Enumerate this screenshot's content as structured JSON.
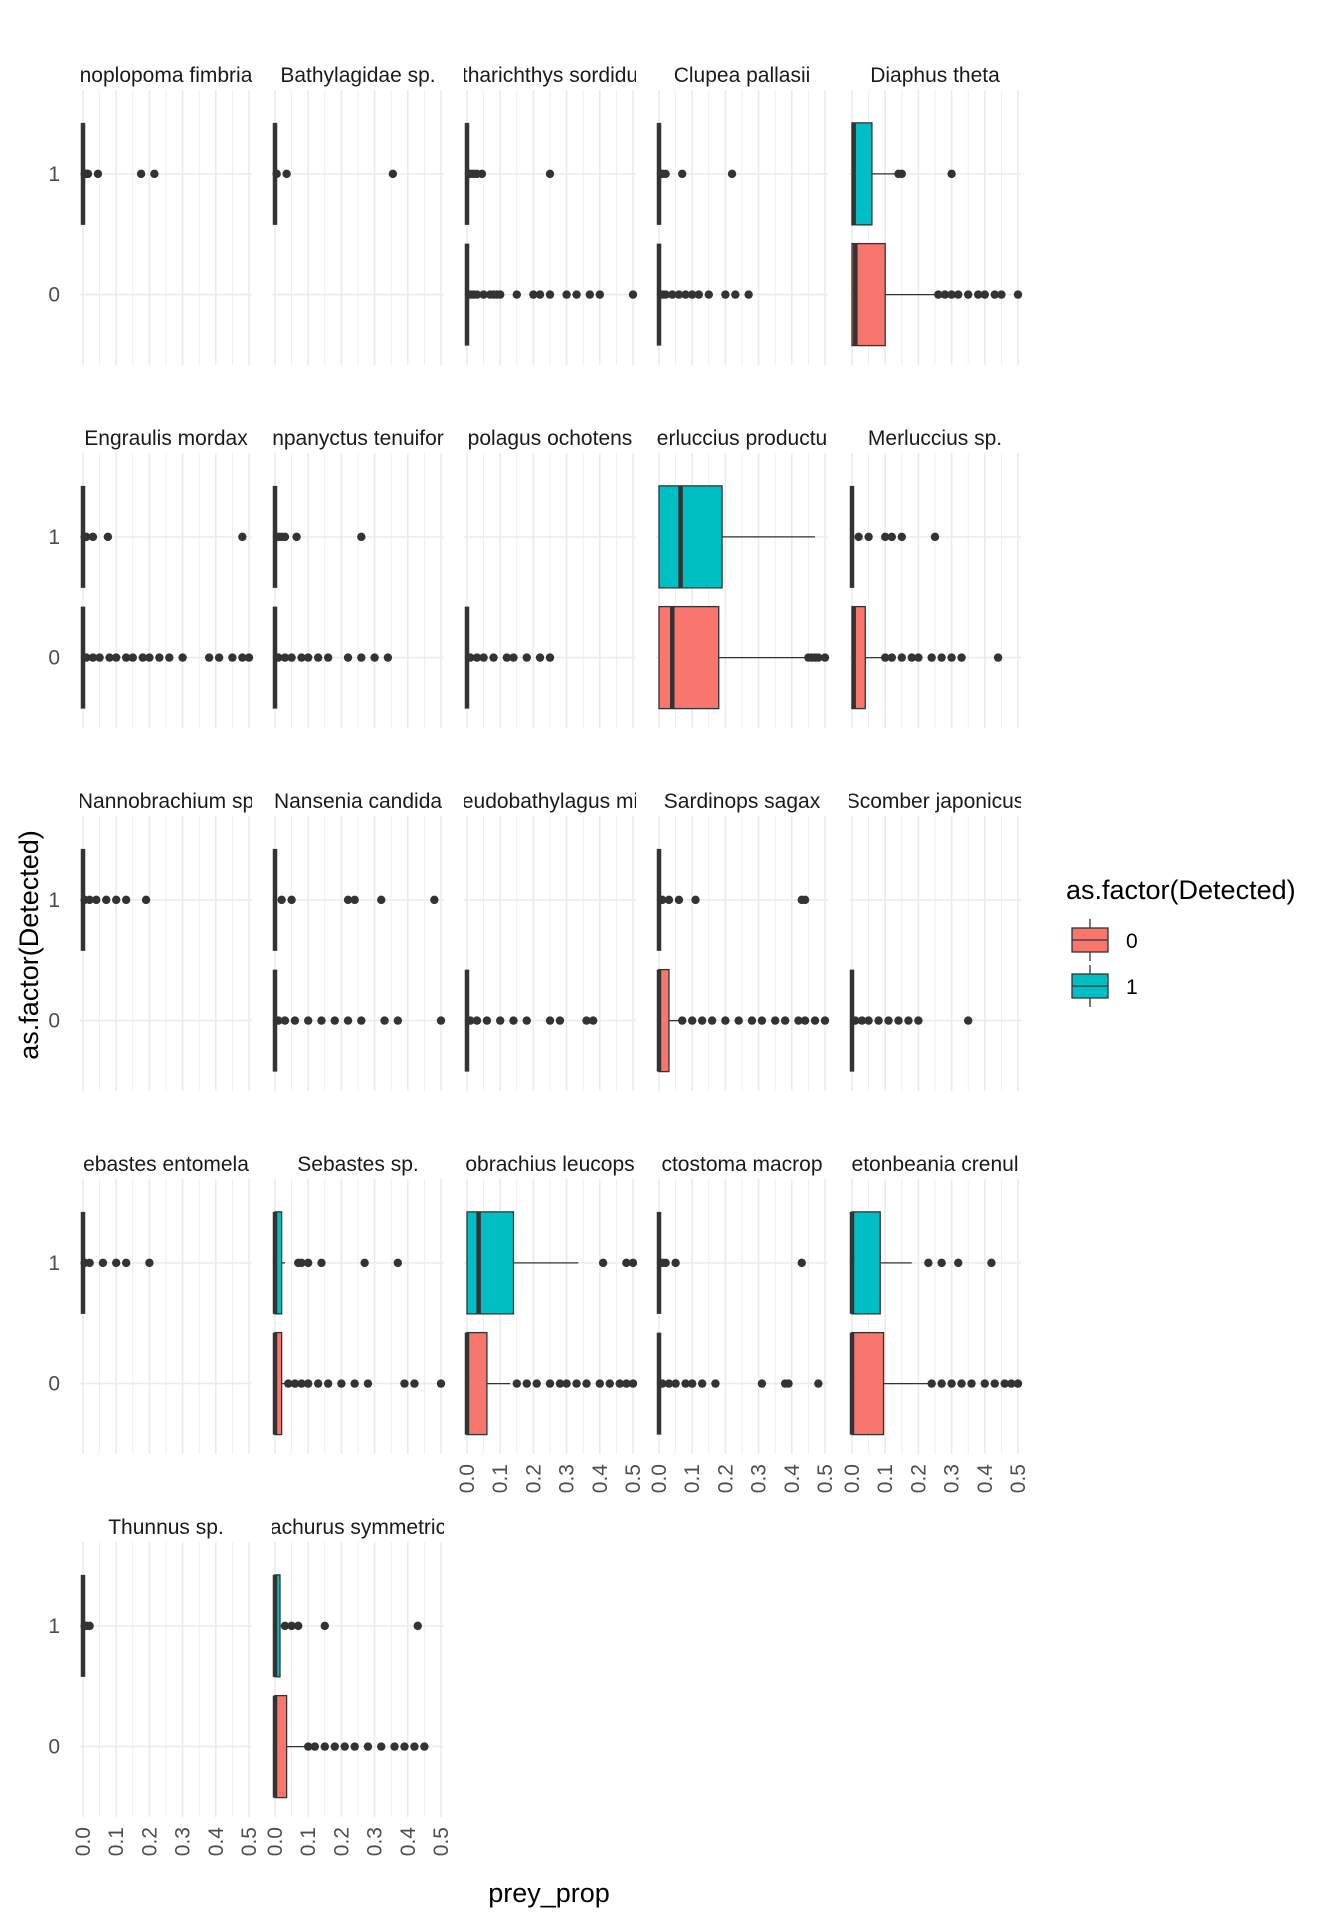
{
  "chart_data": {
    "type": "boxplot",
    "layout": "faceted horizontal boxplots, 5 columns",
    "x_label": "prey_prop",
    "y_label": "as.factor(Detected)",
    "x_range": [
      0.0,
      0.5
    ],
    "x_ticks": [
      "0.0",
      "0.1",
      "0.2",
      "0.3",
      "0.4",
      "0.5"
    ],
    "y_categories": [
      "1",
      "0"
    ],
    "legend": {
      "title": "as.factor(Detected)",
      "placement": "right",
      "items": [
        {
          "label": "0",
          "color": "#F8766D"
        },
        {
          "label": "1",
          "color": "#00BFC4"
        }
      ]
    },
    "colors": {
      "0": "#F8766D",
      "1": "#00BFC4",
      "grid": "#EBEBEB",
      "ink": "#333333"
    },
    "facets": [
      {
        "label": "Anoplopoma fimbria",
        "display_label": "noplopoma fimbria",
        "groups": {
          "1": {
            "stats": [
              0,
              0,
              0,
              0,
              0
            ],
            "outliers": [
              0.005,
              0.01,
              0.015,
              0.045,
              0.175,
              0.215
            ]
          }
        }
      },
      {
        "label": "Bathylagidae sp.",
        "display_label": "Bathylagidae sp.",
        "groups": {
          "1": {
            "stats": [
              0,
              0,
              0,
              0,
              0
            ],
            "outliers": [
              0.005,
              0.035,
              0.355
            ]
          }
        }
      },
      {
        "label": "Citharichthys sordidus",
        "display_label": "tharichthys sordidu",
        "groups": {
          "1": {
            "stats": [
              0,
              0,
              0,
              0,
              0
            ],
            "outliers": [
              0.01,
              0.02,
              0.03,
              0.045,
              0.25
            ]
          },
          "0": {
            "stats": [
              0,
              0,
              0,
              0,
              0
            ],
            "outliers": [
              0.01,
              0.02,
              0.03,
              0.05,
              0.07,
              0.08,
              0.09,
              0.1,
              0.15,
              0.2,
              0.22,
              0.25,
              0.3,
              0.33,
              0.37,
              0.4,
              0.5
            ]
          }
        }
      },
      {
        "label": "Clupea pallasii",
        "display_label": "Clupea pallasii",
        "groups": {
          "1": {
            "stats": [
              0,
              0,
              0,
              0,
              0
            ],
            "outliers": [
              0.01,
              0.02,
              0.07,
              0.22
            ]
          },
          "0": {
            "stats": [
              0,
              0,
              0,
              0,
              0
            ],
            "outliers": [
              0.01,
              0.02,
              0.04,
              0.06,
              0.08,
              0.1,
              0.12,
              0.15,
              0.2,
              0.23,
              0.27
            ]
          }
        }
      },
      {
        "label": "Diaphus theta",
        "display_label": "Diaphus theta",
        "groups": {
          "1": {
            "stats": [
              0,
              0,
              0.005,
              0.06,
              0.13
            ],
            "outliers": [
              0.14,
              0.15,
              0.3
            ]
          },
          "0": {
            "stats": [
              0,
              0,
              0.01,
              0.1,
              0.25
            ],
            "outliers": [
              0.26,
              0.28,
              0.3,
              0.32,
              0.35,
              0.38,
              0.4,
              0.43,
              0.45,
              0.5
            ]
          }
        }
      },
      {
        "label": "Engraulis mordax",
        "display_label": "Engraulis mordax",
        "groups": {
          "1": {
            "stats": [
              0,
              0,
              0,
              0,
              0
            ],
            "outliers": [
              0.005,
              0.01,
              0.03,
              0.075,
              0.48
            ]
          },
          "0": {
            "stats": [
              0,
              0,
              0,
              0,
              0
            ],
            "outliers": [
              0.01,
              0.03,
              0.05,
              0.08,
              0.1,
              0.13,
              0.15,
              0.18,
              0.2,
              0.23,
              0.26,
              0.3,
              0.38,
              0.41,
              0.45,
              0.48,
              0.5
            ]
          }
        }
      },
      {
        "label": "Lampanyctus tenuiformis",
        "display_label": "npanyctus tenuifor",
        "groups": {
          "1": {
            "stats": [
              0,
              0,
              0,
              0,
              0
            ],
            "outliers": [
              0.01,
              0.02,
              0.03,
              0.065,
              0.26
            ]
          },
          "0": {
            "stats": [
              0,
              0,
              0,
              0,
              0
            ],
            "outliers": [
              0.01,
              0.03,
              0.05,
              0.08,
              0.1,
              0.13,
              0.16,
              0.22,
              0.26,
              0.3,
              0.34
            ]
          }
        }
      },
      {
        "label": "Lipolagus ochotensis",
        "display_label": "polagus ochotens",
        "groups": {
          "0": {
            "stats": [
              0,
              0,
              0,
              0,
              0
            ],
            "outliers": [
              0.01,
              0.03,
              0.05,
              0.08,
              0.12,
              0.14,
              0.18,
              0.22,
              0.25
            ]
          }
        }
      },
      {
        "label": "Merluccius productus",
        "display_label": "erluccius productu",
        "groups": {
          "1": {
            "stats": [
              0,
              0,
              0.065,
              0.19,
              0.47
            ],
            "outliers": []
          },
          "0": {
            "stats": [
              0,
              0,
              0.04,
              0.18,
              0.44
            ],
            "outliers": [
              0.45,
              0.46,
              0.47,
              0.48,
              0.5
            ]
          }
        }
      },
      {
        "label": "Merluccius sp.",
        "display_label": "Merluccius sp.",
        "groups": {
          "1": {
            "stats": [
              0,
              0,
              0,
              0,
              0
            ],
            "outliers": [
              0.02,
              0.05,
              0.1,
              0.12,
              0.15,
              0.25
            ]
          },
          "0": {
            "stats": [
              0,
              0,
              0.005,
              0.04,
              0.09
            ],
            "outliers": [
              0.1,
              0.12,
              0.15,
              0.18,
              0.2,
              0.24,
              0.27,
              0.3,
              0.33,
              0.44
            ]
          }
        }
      },
      {
        "label": "Nannobrachium sp.",
        "display_label": "Nannobrachium sp",
        "groups": {
          "1": {
            "stats": [
              0,
              0,
              0,
              0,
              0
            ],
            "outliers": [
              0.005,
              0.02,
              0.04,
              0.07,
              0.1,
              0.13,
              0.19
            ]
          }
        }
      },
      {
        "label": "Nansenia candida",
        "display_label": "Nansenia candida",
        "groups": {
          "1": {
            "stats": [
              0,
              0,
              0,
              0,
              0
            ],
            "outliers": [
              0.02,
              0.05,
              0.22,
              0.24,
              0.32,
              0.48
            ]
          },
          "0": {
            "stats": [
              0,
              0,
              0,
              0,
              0
            ],
            "outliers": [
              0.01,
              0.03,
              0.06,
              0.1,
              0.14,
              0.18,
              0.22,
              0.26,
              0.33,
              0.37,
              0.5
            ]
          }
        }
      },
      {
        "label": "Pseudobathylagus milleri",
        "display_label": "eudobathylagus mi",
        "groups": {
          "0": {
            "stats": [
              0,
              0,
              0,
              0,
              0
            ],
            "outliers": [
              0.01,
              0.03,
              0.06,
              0.1,
              0.14,
              0.18,
              0.25,
              0.28,
              0.36,
              0.38
            ]
          }
        }
      },
      {
        "label": "Sardinops sagax",
        "display_label": "Sardinops sagax",
        "groups": {
          "1": {
            "stats": [
              0,
              0,
              0,
              0,
              0
            ],
            "outliers": [
              0.01,
              0.03,
              0.06,
              0.11,
              0.43,
              0.44
            ]
          },
          "0": {
            "stats": [
              0,
              0,
              0,
              0.03,
              0.06
            ],
            "outliers": [
              0.07,
              0.1,
              0.13,
              0.16,
              0.2,
              0.24,
              0.28,
              0.31,
              0.35,
              0.38,
              0.42,
              0.44,
              0.47,
              0.5
            ]
          }
        }
      },
      {
        "label": "Scomber japonicus",
        "display_label": "Scomber japonicus",
        "groups": {
          "0": {
            "stats": [
              0,
              0,
              0,
              0,
              0
            ],
            "outliers": [
              0.01,
              0.03,
              0.05,
              0.08,
              0.11,
              0.14,
              0.17,
              0.2,
              0.35
            ]
          }
        }
      },
      {
        "label": "Sebastes entomelas",
        "display_label": "ebastes entomela",
        "groups": {
          "1": {
            "stats": [
              0,
              0,
              0,
              0,
              0
            ],
            "outliers": [
              0.005,
              0.02,
              0.06,
              0.1,
              0.13,
              0.2
            ]
          }
        }
      },
      {
        "label": "Sebastes sp.",
        "display_label": "Sebastes sp.",
        "groups": {
          "1": {
            "stats": [
              0,
              0,
              0,
              0.02,
              0.03
            ],
            "outliers": [
              0.07,
              0.08,
              0.1,
              0.14,
              0.27,
              0.37
            ]
          },
          "0": {
            "stats": [
              0,
              0,
              0,
              0.02,
              0.03
            ],
            "outliers": [
              0.04,
              0.06,
              0.08,
              0.1,
              0.13,
              0.16,
              0.2,
              0.24,
              0.28,
              0.39,
              0.42,
              0.5
            ]
          }
        }
      },
      {
        "label": "Stenobrachius leucopsarus",
        "display_label": "obrachius leucops",
        "groups": {
          "1": {
            "stats": [
              0,
              0,
              0.035,
              0.14,
              0.335
            ],
            "outliers": [
              0.41,
              0.48,
              0.5
            ]
          },
          "0": {
            "stats": [
              0,
              0,
              0,
              0.06,
              0.13
            ],
            "outliers": [
              0.15,
              0.18,
              0.21,
              0.25,
              0.28,
              0.3,
              0.33,
              0.36,
              0.4,
              0.43,
              0.46,
              0.48,
              0.5
            ]
          }
        }
      },
      {
        "label": "Tactostoma macropus",
        "display_label": "ctostoma macrop",
        "groups": {
          "1": {
            "stats": [
              0,
              0,
              0,
              0,
              0
            ],
            "outliers": [
              0.01,
              0.02,
              0.05,
              0.43
            ]
          },
          "0": {
            "stats": [
              0,
              0,
              0,
              0,
              0
            ],
            "outliers": [
              0.01,
              0.03,
              0.05,
              0.08,
              0.1,
              0.13,
              0.17,
              0.31,
              0.38,
              0.39,
              0.48
            ]
          }
        }
      },
      {
        "label": "Tetonbeania crenularis",
        "display_label": "etonbeania crenul",
        "groups": {
          "1": {
            "stats": [
              0,
              0,
              0,
              0.085,
              0.18
            ],
            "outliers": [
              0.23,
              0.27,
              0.32,
              0.42
            ]
          },
          "0": {
            "stats": [
              0,
              0,
              0,
              0.095,
              0.23
            ],
            "outliers": [
              0.24,
              0.27,
              0.3,
              0.33,
              0.36,
              0.4,
              0.43,
              0.46,
              0.48,
              0.5
            ]
          }
        }
      },
      {
        "label": "Thunnus sp.",
        "display_label": "Thunnus sp.",
        "groups": {
          "1": {
            "stats": [
              0,
              0,
              0,
              0,
              0
            ],
            "outliers": [
              0.005,
              0.01,
              0.02
            ]
          }
        }
      },
      {
        "label": "Trachurus symmetricus",
        "display_label": "achurus symmetric",
        "groups": {
          "1": {
            "stats": [
              0,
              0,
              0,
              0.015,
              0.02
            ],
            "outliers": [
              0.03,
              0.05,
              0.07,
              0.15,
              0.43
            ]
          },
          "0": {
            "stats": [
              0,
              0,
              0,
              0.035,
              0.09
            ],
            "outliers": [
              0.1,
              0.12,
              0.15,
              0.18,
              0.21,
              0.24,
              0.28,
              0.32,
              0.36,
              0.39,
              0.42,
              0.45
            ]
          }
        }
      }
    ]
  }
}
